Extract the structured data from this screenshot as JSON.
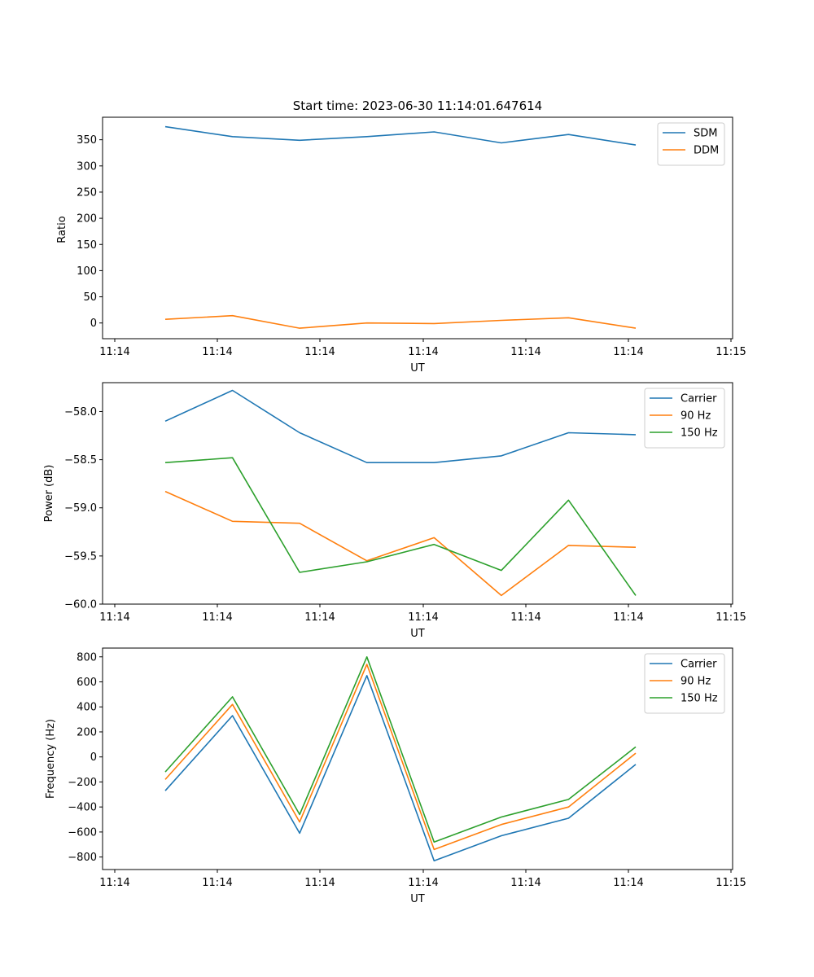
{
  "title": "Start time: 2023-06-30 11:14:01.647614",
  "colors": {
    "blue": "#1f77b4",
    "orange": "#ff7f0e",
    "green": "#2ca02c"
  },
  "chart_data": [
    {
      "type": "line",
      "xlabel": "UT",
      "ylabel": "Ratio",
      "x_tick_labels": [
        "11:14",
        "11:14",
        "11:14",
        "11:14",
        "11:14",
        "11:14",
        "11:15"
      ],
      "y_ticks": [
        "0",
        "50",
        "100",
        "150",
        "200",
        "250",
        "300",
        "350"
      ],
      "ylim": [
        -30,
        393
      ],
      "legend_position": "top-right",
      "x": [
        1,
        2,
        3,
        4,
        5,
        6,
        7,
        8
      ],
      "series": [
        {
          "name": "SDM",
          "color": "#1f77b4",
          "values": [
            375,
            356,
            349,
            356,
            365,
            344,
            360,
            340
          ]
        },
        {
          "name": "DDM",
          "color": "#ff7f0e",
          "values": [
            7,
            14,
            -10,
            0,
            -1,
            5,
            10,
            -10
          ]
        }
      ]
    },
    {
      "type": "line",
      "xlabel": "UT",
      "ylabel": "Power (dB)",
      "x_tick_labels": [
        "11:14",
        "11:14",
        "11:14",
        "11:14",
        "11:14",
        "11:14",
        "11:15"
      ],
      "y_ticks": [
        "−60.0",
        "−59.5",
        "−59.0",
        "−58.5",
        "−58.0"
      ],
      "ylim": [
        -60.0,
        -57.7
      ],
      "legend_position": "top-right",
      "x": [
        1,
        2,
        3,
        4,
        5,
        6,
        7,
        8
      ],
      "series": [
        {
          "name": "Carrier",
          "color": "#1f77b4",
          "values": [
            -58.1,
            -57.78,
            -58.22,
            -58.53,
            -58.53,
            -58.46,
            -58.22,
            -58.24
          ]
        },
        {
          "name": "90 Hz",
          "color": "#ff7f0e",
          "values": [
            -58.83,
            -59.14,
            -59.16,
            -59.55,
            -59.31,
            -59.91,
            -59.39,
            -59.41
          ]
        },
        {
          "name": "150 Hz",
          "color": "#2ca02c",
          "values": [
            -58.53,
            -58.48,
            -59.67,
            -59.56,
            -59.38,
            -59.65,
            -58.92,
            -59.91
          ]
        }
      ]
    },
    {
      "type": "line",
      "xlabel": "UT",
      "ylabel": "Frequency (Hz)",
      "x_tick_labels": [
        "11:14",
        "11:14",
        "11:14",
        "11:14",
        "11:14",
        "11:14",
        "11:15"
      ],
      "y_ticks": [
        "−800",
        "−600",
        "−400",
        "−200",
        "0",
        "200",
        "400",
        "600",
        "800"
      ],
      "ylim": [
        -900,
        870
      ],
      "legend_position": "top-right",
      "x": [
        1,
        2,
        3,
        4,
        5,
        6,
        7,
        8
      ],
      "series": [
        {
          "name": "Carrier",
          "color": "#1f77b4",
          "values": [
            -270,
            330,
            -610,
            650,
            -830,
            -630,
            -490,
            -60
          ]
        },
        {
          "name": "90 Hz",
          "color": "#ff7f0e",
          "values": [
            -180,
            420,
            -520,
            740,
            -740,
            -540,
            -400,
            30
          ]
        },
        {
          "name": "150 Hz",
          "color": "#2ca02c",
          "values": [
            -120,
            480,
            -460,
            800,
            -680,
            -480,
            -340,
            80
          ]
        }
      ]
    }
  ]
}
